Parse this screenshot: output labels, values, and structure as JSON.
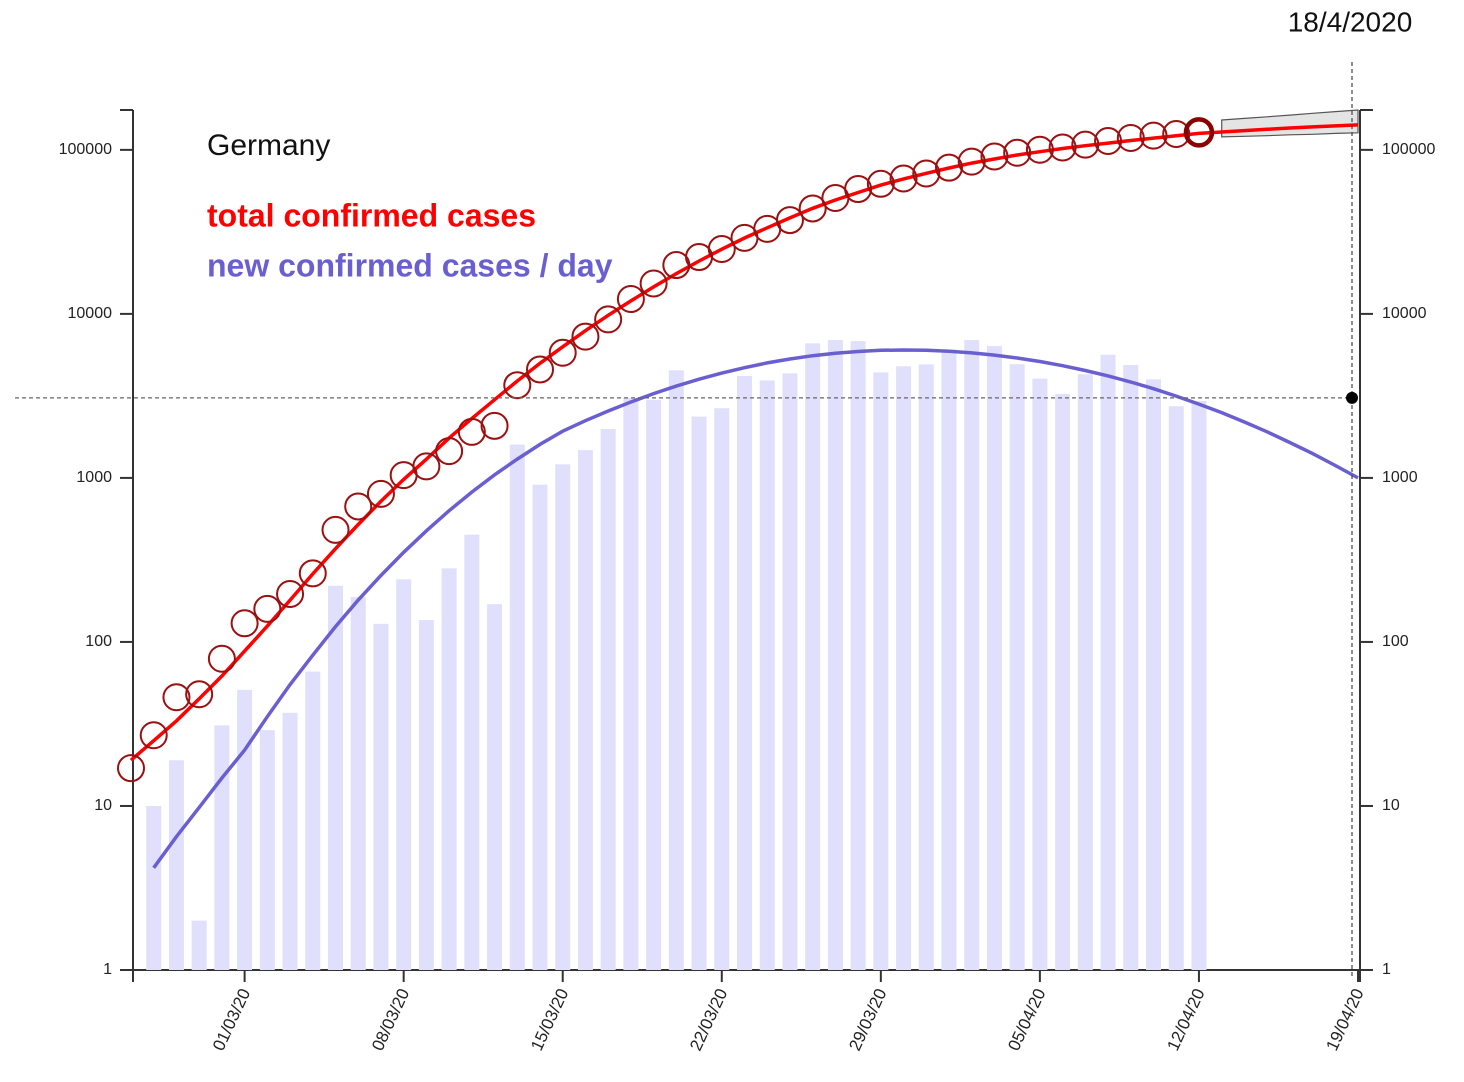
{
  "chart_data": {
    "type": "bar-line-log",
    "title": "Germany",
    "x": [
      "25/02/20",
      "26/02/20",
      "27/02/20",
      "28/02/20",
      "29/02/20",
      "01/03/20",
      "02/03/20",
      "03/03/20",
      "04/03/20",
      "05/03/20",
      "06/03/20",
      "07/03/20",
      "08/03/20",
      "09/03/20",
      "10/03/20",
      "11/03/20",
      "12/03/20",
      "13/03/20",
      "14/03/20",
      "15/03/20",
      "16/03/20",
      "17/03/20",
      "18/03/20",
      "19/03/20",
      "20/03/20",
      "21/03/20",
      "22/03/20",
      "23/03/20",
      "24/03/20",
      "25/03/20",
      "26/03/20",
      "27/03/20",
      "28/03/20",
      "29/03/20",
      "30/03/20",
      "31/03/20",
      "01/04/20",
      "02/04/20",
      "03/04/20",
      "04/04/20",
      "05/04/20",
      "06/04/20",
      "07/04/20",
      "08/04/20",
      "09/04/20",
      "10/04/20",
      "11/04/20",
      "12/04/20",
      "13/04/20",
      "14/04/20",
      "15/04/20",
      "16/04/20",
      "17/04/20",
      "18/04/20",
      "19/04/20"
    ],
    "xticks": [
      "01/03/20",
      "08/03/20",
      "15/03/20",
      "22/03/20",
      "29/03/20",
      "05/04/20",
      "12/04/20",
      "19/04/20"
    ],
    "ylim": [
      1,
      175000
    ],
    "yticks": [
      1,
      10,
      100,
      1000,
      10000,
      100000
    ],
    "log_y": true,
    "series": [
      {
        "name": "total confirmed cases",
        "color": "#ff0000",
        "marker_color": "#9b1010",
        "values": [
          17,
          27,
          46,
          48,
          79,
          130,
          159,
          196,
          262,
          482,
          670,
          799,
          1040,
          1176,
          1457,
          1908,
          2078,
          3675,
          4585,
          5795,
          7272,
          9257,
          12327,
          15320,
          19848,
          22213,
          24873,
          29056,
          32986,
          37323,
          43938,
          50871,
          57695,
          62095,
          66885,
          71808,
          77872,
          84794,
          91159,
          96092,
          100123,
          103374,
          107663,
          113296,
          118181,
          122171,
          124908,
          127854,
          null,
          null,
          null,
          null,
          null,
          null,
          null
        ],
        "fit": [
          19,
          25,
          33,
          45,
          62,
          88,
          125,
          180,
          260,
          370,
          520,
          720,
          980,
          1300,
          1750,
          2300,
          3000,
          3900,
          5000,
          6300,
          7900,
          9800,
          12000,
          14600,
          17600,
          21000,
          24800,
          29000,
          33500,
          38500,
          44000,
          49500,
          55000,
          61000,
          66500,
          72000,
          77500,
          83000,
          88000,
          93000,
          97500,
          102000,
          106000,
          110000,
          114000,
          118000,
          122000,
          126000,
          128500,
          131000,
          133500,
          136000,
          138000,
          140000,
          142000
        ],
        "band_low": [
          null,
          null,
          null,
          null,
          null,
          null,
          null,
          null,
          null,
          null,
          null,
          null,
          null,
          null,
          null,
          null,
          null,
          null,
          null,
          null,
          null,
          null,
          null,
          null,
          null,
          null,
          null,
          null,
          null,
          null,
          null,
          null,
          null,
          null,
          null,
          null,
          null,
          null,
          null,
          null,
          null,
          null,
          null,
          null,
          null,
          null,
          null,
          null,
          120000,
          121000,
          122000,
          123500,
          124500,
          126000,
          127000
        ],
        "band_high": [
          null,
          null,
          null,
          null,
          null,
          null,
          null,
          null,
          null,
          null,
          null,
          null,
          null,
          null,
          null,
          null,
          null,
          null,
          null,
          null,
          null,
          null,
          null,
          null,
          null,
          null,
          null,
          null,
          null,
          null,
          null,
          null,
          null,
          null,
          null,
          null,
          null,
          null,
          null,
          null,
          null,
          null,
          null,
          null,
          null,
          null,
          null,
          null,
          152000,
          155500,
          159000,
          163000,
          167000,
          171000,
          175000
        ],
        "band_color": "#e4e4e4"
      },
      {
        "name": "new confirmed cases / day",
        "color": "#6a5fd0",
        "bar_color": "#e0e0fc",
        "values": [
          null,
          10,
          19,
          2,
          31,
          51,
          29,
          37,
          66,
          220,
          188,
          129,
          241,
          136,
          281,
          451,
          170,
          1597,
          910,
          1210,
          1477,
          1985,
          3070,
          2993,
          4528,
          2365,
          2660,
          4183,
          3930,
          4337,
          6615,
          6933,
          6824,
          4400,
          4790,
          4923,
          6064,
          6922,
          6365,
          4933,
          4031,
          3251,
          4289,
          5633,
          4885,
          3990,
          2737,
          2946,
          null,
          null,
          null,
          null,
          null,
          null,
          null
        ],
        "fit": [
          null,
          4.2,
          6.5,
          9.8,
          14.8,
          21.9,
          35,
          55,
          83,
          124,
          180,
          254,
          352,
          476,
          631,
          820,
          1045,
          1303,
          1600,
          1928,
          2234,
          2560,
          2904,
          3266,
          3631,
          3999,
          4355,
          4699,
          5023,
          5309,
          5559,
          5754,
          5902,
          5998,
          6026,
          5999,
          5918,
          5784,
          5610,
          5385,
          5128,
          4831,
          4519,
          4188,
          3846,
          3499,
          3155,
          2818,
          2500,
          2193,
          1910,
          1644,
          1406,
          1191,
          1000
        ]
      }
    ],
    "cursor": {
      "label": "18/4/2020",
      "value": 3075
    }
  }
}
